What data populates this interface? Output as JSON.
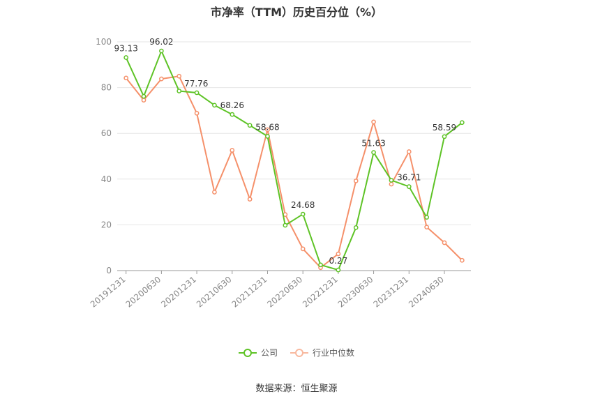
{
  "chart_data": {
    "type": "line",
    "title": "市净率（TTM）历史百分位（%）",
    "x": [
      "20191231",
      "20200331",
      "20200630",
      "20200930",
      "20201231",
      "20210331",
      "20210630",
      "20210930",
      "20211231",
      "20220331",
      "20220630",
      "20220930",
      "20221231",
      "20230331",
      "20230630",
      "20230930",
      "20231231",
      "20240331",
      "20240630",
      "20240930"
    ],
    "tick_labels": [
      "20191231",
      "20200630",
      "20201231",
      "20210630",
      "20211231",
      "20220630",
      "20221231",
      "20230630",
      "20231231",
      "20240630"
    ],
    "ylim": [
      0,
      100
    ],
    "yticks": [
      0,
      20,
      40,
      60,
      80,
      100
    ],
    "grid": true,
    "legend_position": "bottom",
    "series": [
      {
        "name": "公司",
        "color": "#5ec326",
        "values": [
          93.13,
          76.2,
          96.02,
          78.5,
          77.76,
          72.3,
          68.26,
          63.5,
          58.68,
          19.8,
          24.68,
          2.5,
          0.27,
          18.8,
          51.63,
          39.5,
          36.71,
          23.3,
          58.59,
          64.7
        ],
        "labeled_indices": [
          0,
          2,
          4,
          6,
          8,
          10,
          12,
          14,
          16,
          18
        ]
      },
      {
        "name": "行业中位数",
        "color": "#f5906a",
        "values": [
          84.2,
          74.5,
          83.8,
          85.0,
          68.8,
          34.3,
          52.6,
          31.2,
          61.6,
          24.5,
          9.5,
          1.3,
          7.3,
          39.2,
          65.0,
          37.8,
          52.0,
          19.0,
          12.2,
          4.5
        ]
      }
    ]
  },
  "source": "数据来源：恒生聚源"
}
